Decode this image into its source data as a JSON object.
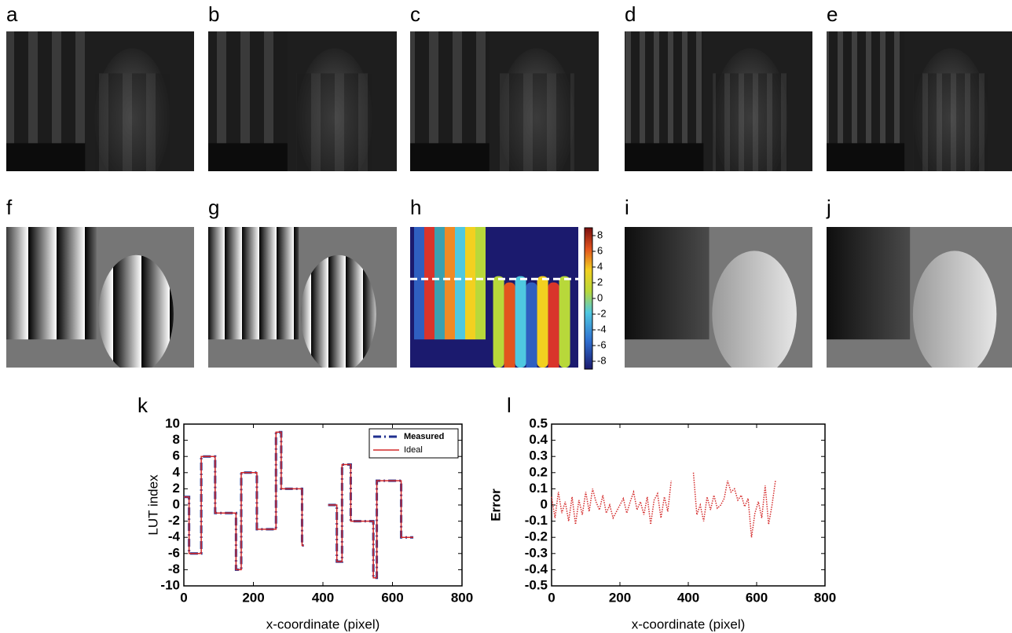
{
  "panels": [
    "a",
    "b",
    "c",
    "d",
    "e",
    "f",
    "g",
    "h",
    "i",
    "j"
  ],
  "colorbar": {
    "lim": [
      -9,
      9
    ],
    "ticks": [
      8,
      6,
      4,
      2,
      0,
      -2,
      -4,
      -6,
      -8
    ]
  },
  "chart_data": [
    {
      "type": "line",
      "title": "k",
      "xlabel": "x-coordinate (pixel)",
      "ylabel": "LUT index",
      "xlim": [
        0,
        800
      ],
      "xticks": [
        0,
        200,
        400,
        600,
        800
      ],
      "ylim": [
        -10,
        10
      ],
      "yticks": [
        -10,
        -8,
        -6,
        -4,
        -2,
        0,
        2,
        4,
        6,
        8,
        10
      ],
      "legend": "upper right",
      "x": [
        0,
        15,
        15,
        50,
        50,
        90,
        90,
        150,
        150,
        165,
        165,
        210,
        210,
        265,
        265,
        280,
        280,
        340,
        340,
        345,
        380,
        415,
        440,
        440,
        455,
        455,
        480,
        480,
        545,
        545,
        555,
        555,
        625,
        625,
        660
      ],
      "series": [
        {
          "name": "Measured",
          "color": "#1f2f8f",
          "style": "dashdot",
          "values": [
            1,
            1,
            -6,
            -6,
            6,
            6,
            -1,
            -1,
            -8,
            -8,
            4,
            4,
            -3,
            -3,
            9,
            9,
            2,
            2,
            -5,
            -5,
            null,
            0,
            0,
            -7,
            -7,
            5,
            5,
            -2,
            -2,
            -9,
            -9,
            3,
            3,
            -4,
            -4
          ]
        },
        {
          "name": "Ideal",
          "color": "#d42a2a",
          "style": "solid",
          "values": [
            1,
            1,
            -6,
            -6,
            6,
            6,
            -1,
            -1,
            -8,
            -8,
            4,
            4,
            -3,
            -3,
            9,
            9,
            2,
            2,
            -5,
            -5,
            null,
            0,
            0,
            -7,
            -7,
            5,
            5,
            -2,
            -2,
            -9,
            -9,
            3,
            3,
            -4,
            -4
          ]
        }
      ]
    },
    {
      "type": "line",
      "title": "l",
      "xlabel": "x-coordinate (pixel)",
      "ylabel": "Error",
      "xlim": [
        0,
        800
      ],
      "xticks": [
        0,
        200,
        400,
        600,
        800
      ],
      "ylim": [
        -0.5,
        0.5
      ],
      "yticks": [
        -0.5,
        -0.4,
        -0.3,
        -0.2,
        -0.1,
        0,
        0.1,
        0.2,
        0.3,
        0.4,
        0.5
      ],
      "x": [
        0,
        10,
        20,
        30,
        40,
        50,
        60,
        70,
        80,
        90,
        100,
        110,
        120,
        130,
        140,
        150,
        160,
        170,
        180,
        190,
        200,
        210,
        220,
        230,
        240,
        250,
        260,
        270,
        280,
        290,
        300,
        310,
        320,
        330,
        340,
        350,
        380,
        415,
        425,
        435,
        445,
        455,
        465,
        475,
        485,
        495,
        505,
        515,
        525,
        535,
        545,
        555,
        565,
        575,
        585,
        595,
        605,
        615,
        625,
        635,
        645,
        655
      ],
      "series": [
        {
          "color": "#d42a2a",
          "style": "dotted",
          "values": [
            0.05,
            -0.08,
            0.08,
            -0.05,
            0.02,
            -0.1,
            0.05,
            -0.12,
            0.03,
            -0.06,
            0.08,
            -0.04,
            0.1,
            0.02,
            -0.03,
            0.06,
            -0.05,
            0.0,
            -0.08,
            -0.04,
            0.0,
            0.04,
            -0.05,
            0.02,
            0.08,
            -0.03,
            0.02,
            -0.06,
            0.05,
            -0.12,
            0.03,
            0.07,
            -0.08,
            0.05,
            -0.04,
            0.15,
            null,
            0.2,
            -0.06,
            0.0,
            -0.1,
            0.05,
            -0.03,
            0.06,
            -0.02,
            0.0,
            0.04,
            0.15,
            0.08,
            0.1,
            0.03,
            0.06,
            -0.01,
            0.04,
            -0.2,
            -0.05,
            0.02,
            -0.08,
            0.12,
            -0.12,
            0.0,
            0.15
          ]
        }
      ]
    }
  ]
}
